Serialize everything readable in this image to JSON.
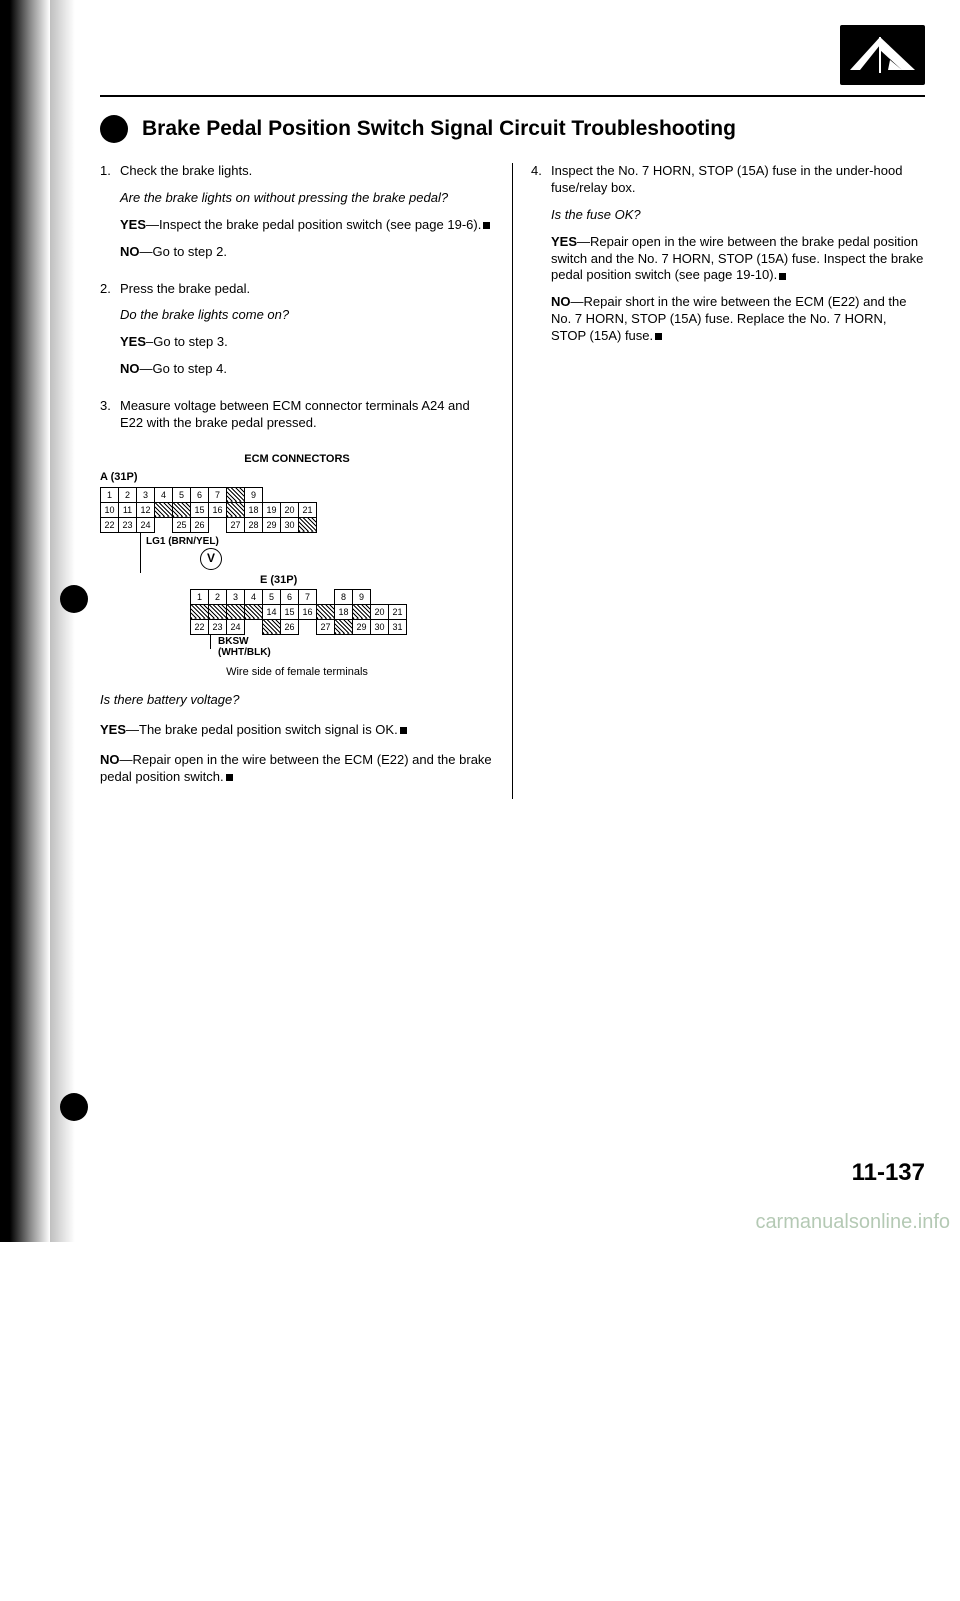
{
  "title": "Brake Pedal Position Switch Signal Circuit Troubleshooting",
  "page_number": "11-137",
  "watermark": "carmanualsonline.info",
  "left_steps": [
    {
      "num": "1.",
      "lines": [
        {
          "text": "Check the brake lights."
        },
        {
          "text": "Are the brake lights on without pressing the brake pedal?",
          "italic": true
        },
        {
          "yes": "YES",
          "sep": "—",
          "rest": "Inspect the brake pedal position switch (see page 19-6).",
          "end": true
        },
        {
          "yes": "NO",
          "sep": "—",
          "rest": "Go to step 2."
        }
      ]
    },
    {
      "num": "2.",
      "lines": [
        {
          "text": "Press the brake pedal."
        },
        {
          "text": "Do the brake lights come on?",
          "italic": true
        },
        {
          "yes": "YES",
          "sep": "–",
          "rest": "Go to step 3."
        },
        {
          "yes": "NO",
          "sep": "—",
          "rest": "Go to step 4."
        }
      ]
    },
    {
      "num": "3.",
      "lines": [
        {
          "text": "Measure voltage between ECM connector terminals A24 and E22 with the brake pedal pressed."
        }
      ]
    }
  ],
  "diagram": {
    "title": "ECM CONNECTORS",
    "connA": {
      "label": "A (31P)",
      "rows": [
        [
          "1",
          "2",
          "3",
          "4",
          "5",
          "6",
          "7",
          "/",
          "9",
          ""
        ],
        [
          "10",
          "11",
          "12",
          "/",
          "/",
          "15",
          "16",
          "/",
          "18",
          "19",
          "20",
          "21"
        ],
        [
          "22",
          "23",
          "24",
          "",
          "25",
          "26",
          "",
          "27",
          "28",
          "29",
          "30",
          "/"
        ]
      ],
      "hatch": {
        "0": [
          7
        ],
        "1": [
          3,
          4,
          7
        ],
        "2": [
          11
        ]
      },
      "blank": {
        "0": [
          9,
          10,
          11
        ],
        "2": [
          3,
          6
        ]
      }
    },
    "sigA": "LG1 (BRN/YEL)",
    "connE": {
      "label": "E (31P)",
      "rows": [
        [
          "1",
          "2",
          "3",
          "4",
          "5",
          "6",
          "7",
          "",
          "8",
          "9"
        ],
        [
          "/",
          "/",
          "/",
          "/",
          "14",
          "15",
          "16",
          "/",
          "18",
          "/",
          "20",
          "21"
        ],
        [
          "22",
          "23",
          "24",
          "",
          "/",
          "26",
          "",
          "27",
          "/",
          "29",
          "30",
          "31"
        ]
      ],
      "hatch": {
        "1": [
          0,
          1,
          2,
          3,
          7,
          9
        ],
        "2": [
          4,
          8
        ]
      },
      "blank": {
        "0": [
          7,
          10,
          11
        ],
        "2": [
          3,
          6
        ]
      }
    },
    "sigE": "BKSW",
    "sigE2": "(WHT/BLK)",
    "caption": "Wire side of female terminals",
    "volt": "V"
  },
  "after_diagram": [
    {
      "text": "Is there battery voltage?",
      "italic": true
    },
    {
      "yes": "YES",
      "sep": "—",
      "rest": "The brake pedal position switch signal is OK.",
      "end": true
    },
    {
      "yes": "NO",
      "sep": "—",
      "rest": "Repair open in the wire between the ECM (E22) and the brake pedal position switch.",
      "end": true
    }
  ],
  "right_steps": [
    {
      "num": "4.",
      "lines": [
        {
          "text": "Inspect the No. 7 HORN, STOP (15A) fuse in the under-hood fuse/relay box."
        },
        {
          "text": "Is the fuse OK?",
          "italic": true
        },
        {
          "yes": "YES",
          "sep": "—",
          "rest": "Repair open in the wire between the brake pedal position switch and the No. 7 HORN, STOP (15A) fuse. Inspect the brake pedal position switch (see page 19-10).",
          "end": true
        },
        {
          "yes": "NO",
          "sep": "—",
          "rest": "Repair short in the wire between the ECM (E22) and the No. 7 HORN, STOP (15A) fuse. Replace the No. 7 HORN, STOP (15A) fuse.",
          "end": true
        }
      ]
    }
  ]
}
